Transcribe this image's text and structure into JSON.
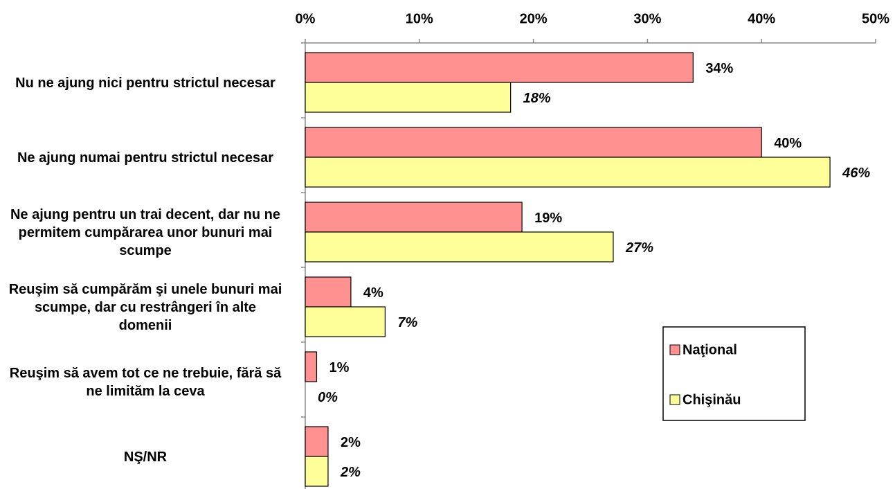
{
  "chart_data": {
    "type": "bar",
    "orientation": "horizontal",
    "categories": [
      "Nu ne ajung nici pentru strictul necesar",
      "Ne ajung numai pentru strictul necesar",
      "Ne ajung pentru un trai decent, dar nu ne permitem cumpărarea unor bunuri mai scumpe",
      "Reuşim să cumpărăm şi unele bunuri mai scumpe, dar cu restrângeri în alte domenii",
      "Reuşim să avem tot ce ne trebuie, fără să ne limităm la ceva",
      "NŞ/NR"
    ],
    "series": [
      {
        "name": "Naţional",
        "color": "#ff9191",
        "values": [
          34,
          40,
          19,
          4,
          1,
          2
        ],
        "value_labels": [
          "34%",
          "40%",
          "19%",
          "4%",
          "1%",
          "2%"
        ]
      },
      {
        "name": "Chişinău",
        "color": "#ffff99",
        "values": [
          18,
          46,
          27,
          7,
          0,
          2
        ],
        "value_labels": [
          "18%",
          "46%",
          "27%",
          "7%",
          "0%",
          "2%"
        ]
      }
    ],
    "xlim": [
      0,
      50
    ],
    "xticks": [
      {
        "value": 0,
        "label": "0%"
      },
      {
        "value": 10,
        "label": "10%"
      },
      {
        "value": 20,
        "label": "20%"
      },
      {
        "value": 30,
        "label": "30%"
      },
      {
        "value": 40,
        "label": "40%"
      },
      {
        "value": 50,
        "label": "50%"
      }
    ],
    "legend": "lower right"
  }
}
